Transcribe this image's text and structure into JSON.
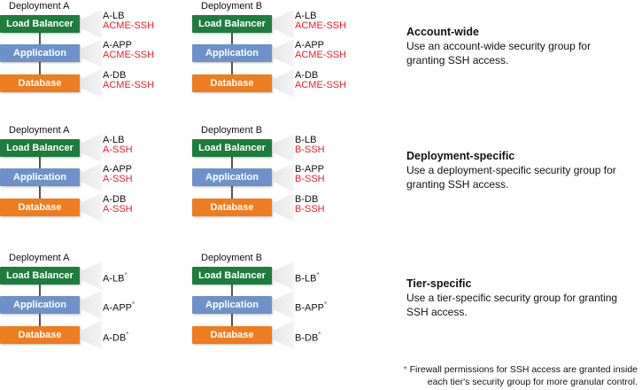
{
  "colors": {
    "lb": "#1e7c3c",
    "app": "#6e92c8",
    "db": "#ee7d1f",
    "accent_red": "#e5202e"
  },
  "tiers": {
    "lb": "Load Balancer",
    "app": "Application",
    "db": "Database"
  },
  "sections": [
    {
      "title": "Account-wide",
      "description": "Use an account-wide security group for granting SSH access.",
      "deployments": [
        {
          "label": "Deployment A",
          "groups": [
            {
              "name": "A-LB",
              "sg": "ACME-SSH",
              "mark": ""
            },
            {
              "name": "A-APP",
              "sg": "ACME-SSH",
              "mark": ""
            },
            {
              "name": "A-DB",
              "sg": "ACME-SSH",
              "mark": ""
            }
          ]
        },
        {
          "label": "Deployment B",
          "groups": [
            {
              "name": "A-LB",
              "sg": "ACME-SSH",
              "mark": ""
            },
            {
              "name": "A-APP",
              "sg": "ACME-SSH",
              "mark": ""
            },
            {
              "name": "A-DB",
              "sg": "ACME-SSH",
              "mark": ""
            }
          ]
        }
      ]
    },
    {
      "title": "Deployment-specific",
      "description": "Use a deployment-specific security group for granting SSH access.",
      "deployments": [
        {
          "label": "Deployment A",
          "groups": [
            {
              "name": "A-LB",
              "sg": "A-SSH",
              "mark": ""
            },
            {
              "name": "A-APP",
              "sg": "A-SSH",
              "mark": ""
            },
            {
              "name": "A-DB",
              "sg": "A-SSH",
              "mark": ""
            }
          ]
        },
        {
          "label": "Deployment B",
          "groups": [
            {
              "name": "B-LB",
              "sg": "B-SSH",
              "mark": ""
            },
            {
              "name": "B-APP",
              "sg": "B-SSH",
              "mark": ""
            },
            {
              "name": "B-DB",
              "sg": "B-SSH",
              "mark": ""
            }
          ]
        }
      ]
    },
    {
      "title": "Tier-specific",
      "description": "Use a tier-specific security group for granting SSH access.",
      "deployments": [
        {
          "label": "Deployment A",
          "groups": [
            {
              "name": "A-LB",
              "sg": "",
              "mark": "*"
            },
            {
              "name": "A-APP",
              "sg": "",
              "mark": "*"
            },
            {
              "name": "A-DB",
              "sg": "",
              "mark": "*"
            }
          ]
        },
        {
          "label": "Deployment B",
          "groups": [
            {
              "name": "B-LB",
              "sg": "",
              "mark": "*"
            },
            {
              "name": "B-APP",
              "sg": "",
              "mark": "*"
            },
            {
              "name": "B-DB",
              "sg": "",
              "mark": "*"
            }
          ]
        }
      ]
    }
  ],
  "footnote": {
    "mark": "*",
    "line1": "Firewall permissions for SSH access are granted inside",
    "line2": "each tier's security group for more granular control."
  }
}
